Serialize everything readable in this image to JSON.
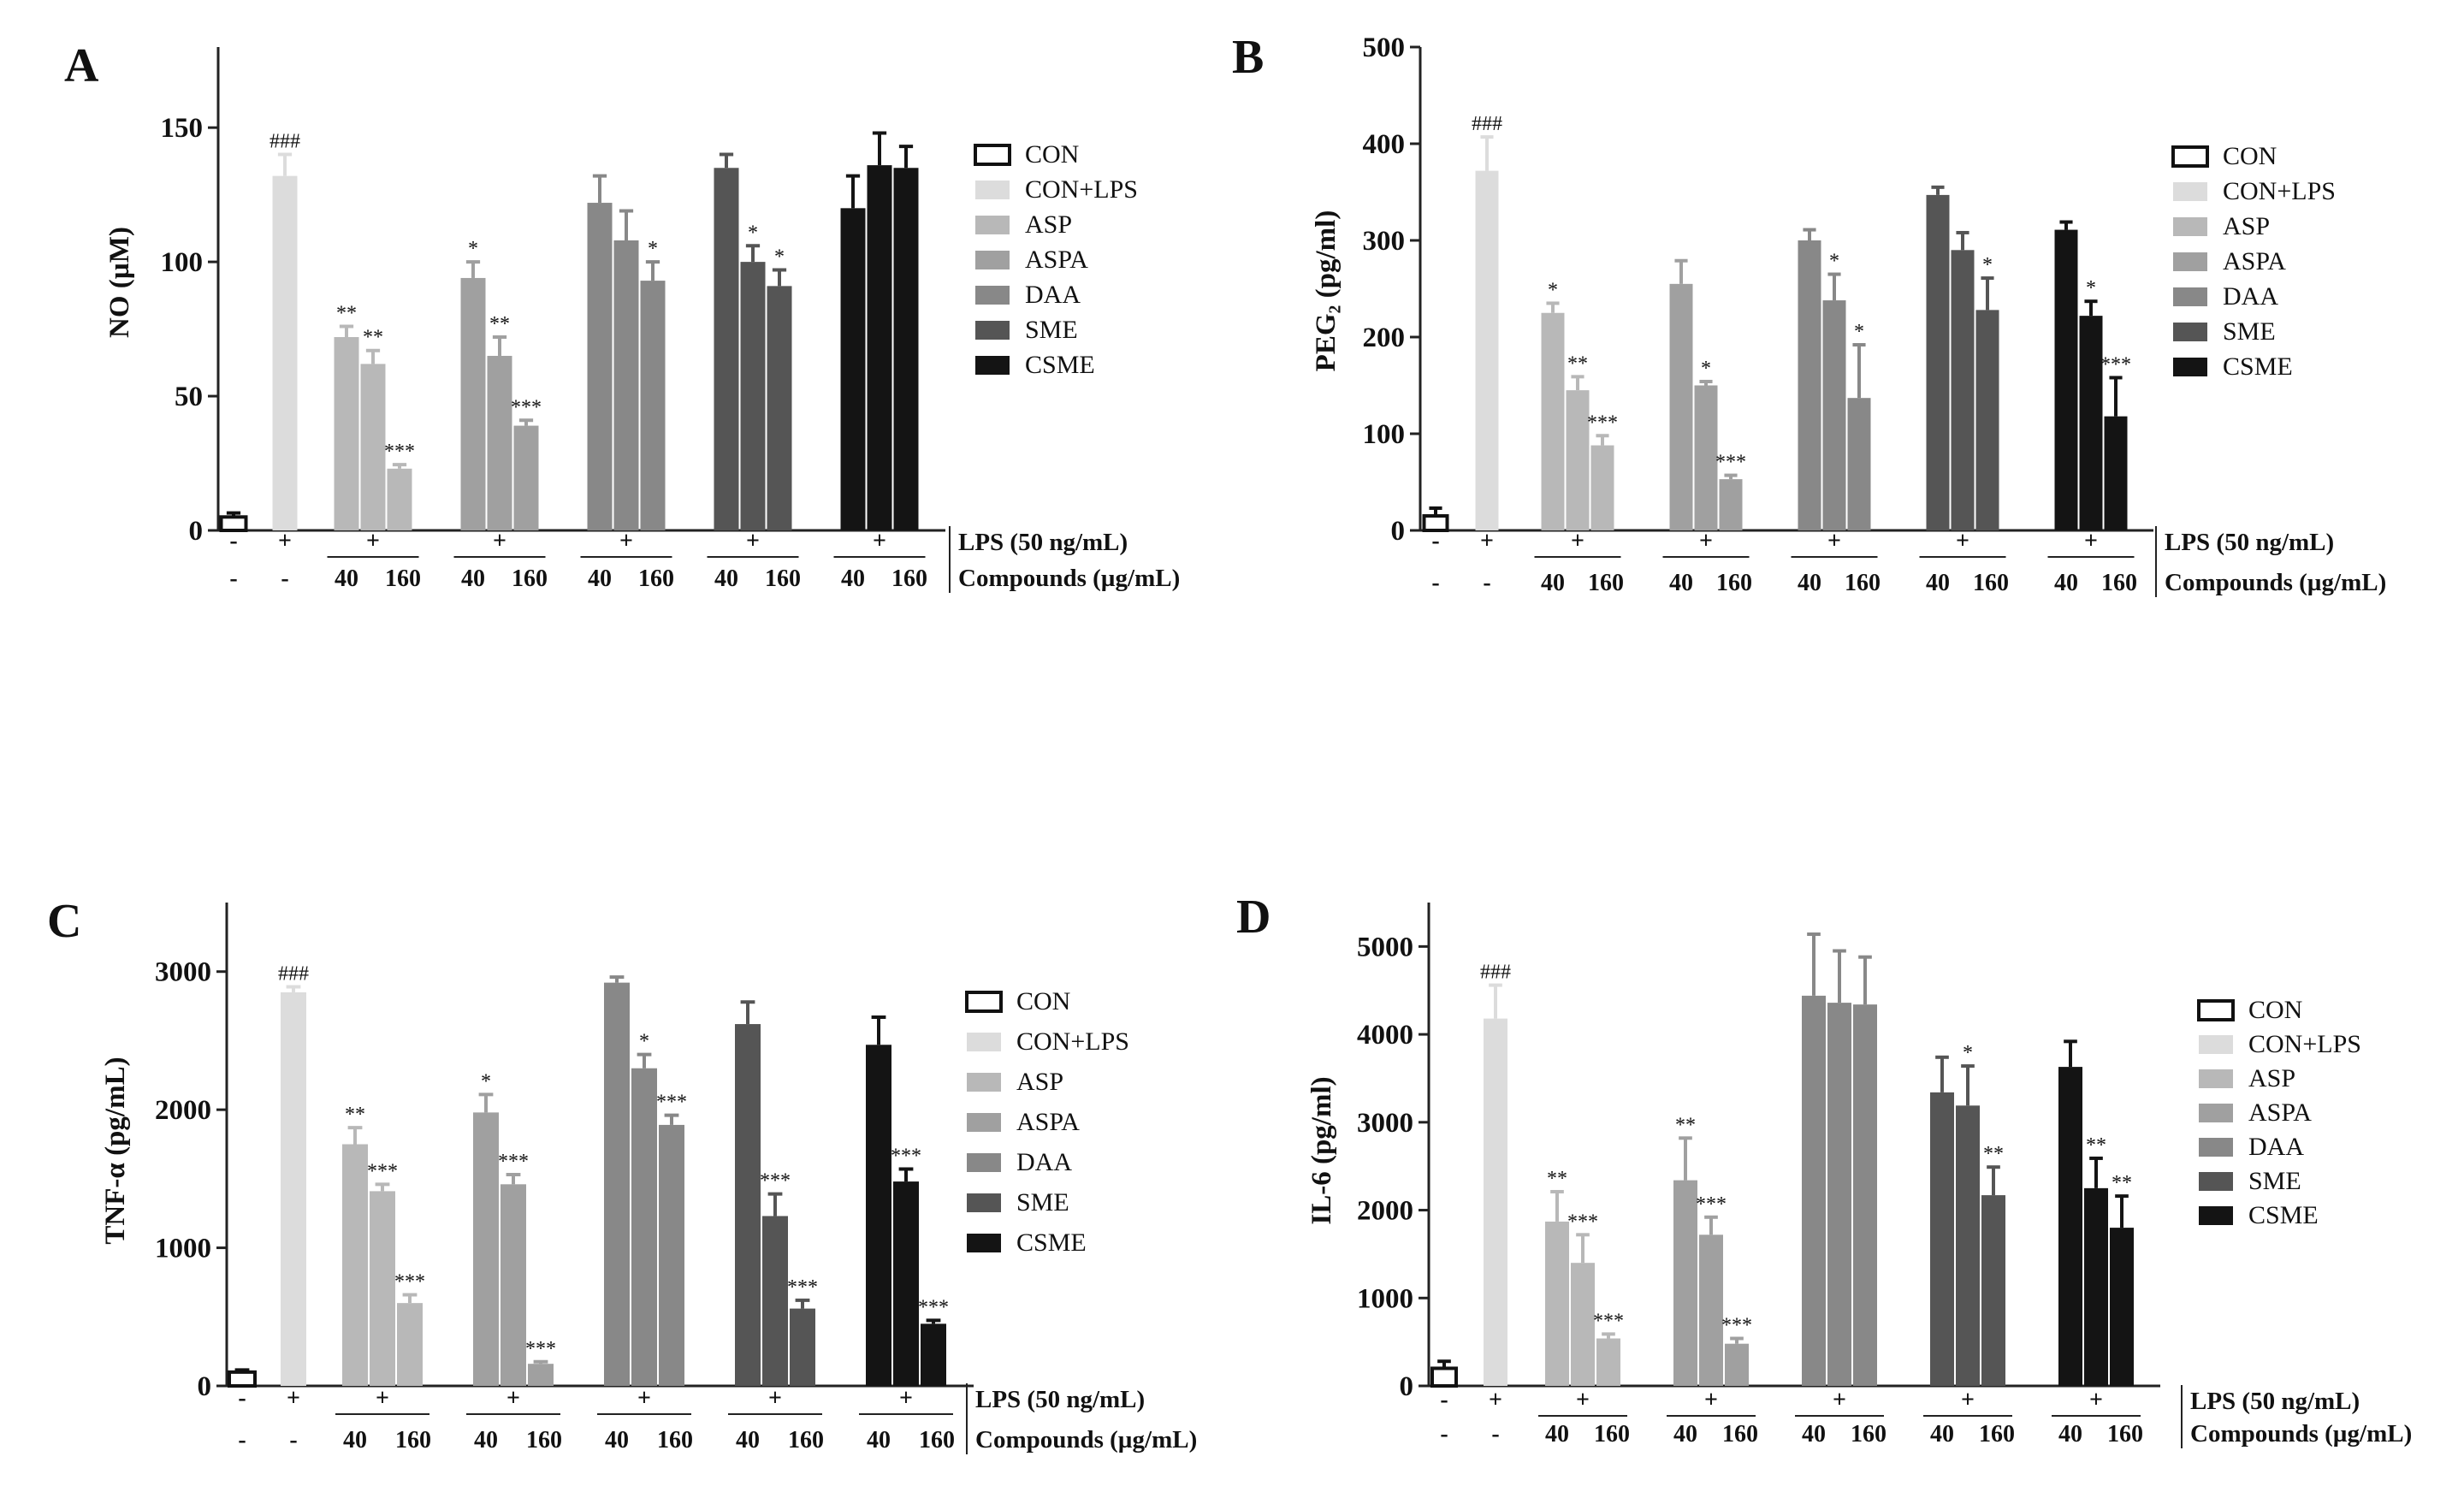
{
  "colors": {
    "CON": "#ffffff",
    "CON+LPS": "#dcdcdc",
    "ASP": "#b8b8b8",
    "ASPA": "#a0a0a0",
    "DAA": "#888888",
    "SME": "#555555",
    "CSME": "#141414"
  },
  "labels": {
    "lps": "LPS (50 ng/mL)",
    "compounds": "Compounds (µg/mL)",
    "dose_low": "40",
    "dose_high": "160",
    "plus": "+",
    "minus": "-"
  },
  "legend": [
    "CON",
    "CON+LPS",
    "ASP",
    "ASPA",
    "DAA",
    "SME",
    "CSME"
  ],
  "chart_data": [
    {
      "type": "bar",
      "panel": "A",
      "ylabel": "NO (µM)",
      "ylim": [
        0,
        180
      ],
      "yticks": [
        0,
        50,
        100,
        150
      ],
      "control": {
        "value": 5,
        "err": 1.5
      },
      "lps": {
        "value": 132,
        "err": 8,
        "sig": "###"
      },
      "series": [
        {
          "name": "ASP",
          "values": [
            72,
            62,
            23
          ],
          "errors": [
            4,
            5,
            1.5
          ],
          "sig": [
            "**",
            "**",
            "***"
          ]
        },
        {
          "name": "ASPA",
          "values": [
            94,
            65,
            39
          ],
          "errors": [
            6,
            7,
            2
          ],
          "sig": [
            "*",
            "**",
            "***"
          ]
        },
        {
          "name": "DAA",
          "values": [
            122,
            108,
            93
          ],
          "errors": [
            10,
            11,
            7
          ],
          "sig": [
            "",
            "",
            "*"
          ]
        },
        {
          "name": "SME",
          "values": [
            135,
            100,
            91
          ],
          "errors": [
            5,
            6,
            6
          ],
          "sig": [
            "",
            "*",
            "*"
          ]
        },
        {
          "name": "CSME",
          "values": [
            120,
            136,
            135
          ],
          "errors": [
            12,
            12,
            8
          ],
          "sig": [
            "",
            "",
            ""
          ]
        }
      ]
    },
    {
      "type": "bar",
      "panel": "B",
      "ylabel": "PEG₂ (pg/ml)",
      "ylim": [
        0,
        500
      ],
      "yticks": [
        0,
        100,
        200,
        300,
        400,
        500
      ],
      "control": {
        "value": 15,
        "err": 8
      },
      "lps": {
        "value": 372,
        "err": 35,
        "sig": "###"
      },
      "series": [
        {
          "name": "ASP",
          "values": [
            225,
            145,
            88
          ],
          "errors": [
            10,
            14,
            10
          ],
          "sig": [
            "*",
            "**",
            "***"
          ]
        },
        {
          "name": "ASPA",
          "values": [
            255,
            150,
            53
          ],
          "errors": [
            24,
            4,
            4
          ],
          "sig": [
            "",
            "*",
            "***"
          ]
        },
        {
          "name": "DAA",
          "values": [
            300,
            238,
            137
          ],
          "errors": [
            11,
            27,
            55
          ],
          "sig": [
            "",
            "*",
            "*"
          ]
        },
        {
          "name": "SME",
          "values": [
            347,
            290,
            228
          ],
          "errors": [
            8,
            18,
            33
          ],
          "sig": [
            "",
            "",
            "*"
          ]
        },
        {
          "name": "CSME",
          "values": [
            311,
            222,
            118
          ],
          "errors": [
            8,
            15,
            40
          ],
          "sig": [
            "",
            "*",
            "***"
          ]
        }
      ]
    },
    {
      "type": "bar",
      "panel": "C",
      "ylabel": "TNF-α (pg/mL)",
      "ylim": [
        0,
        3500
      ],
      "yticks": [
        0,
        1000,
        2000,
        3000
      ],
      "control": {
        "value": 100,
        "err": 15
      },
      "lps": {
        "value": 2850,
        "err": 40,
        "sig": "###"
      },
      "series": [
        {
          "name": "ASP",
          "values": [
            1750,
            1410,
            600
          ],
          "errors": [
            120,
            50,
            60
          ],
          "sig": [
            "**",
            "***",
            "***"
          ]
        },
        {
          "name": "ASPA",
          "values": [
            1980,
            1460,
            160
          ],
          "errors": [
            130,
            70,
            15
          ],
          "sig": [
            "*",
            "***",
            "***"
          ]
        },
        {
          "name": "DAA",
          "values": [
            2920,
            2300,
            1890
          ],
          "errors": [
            40,
            100,
            70
          ],
          "sig": [
            "",
            "*",
            "***"
          ]
        },
        {
          "name": "SME",
          "values": [
            2620,
            1230,
            560
          ],
          "errors": [
            160,
            160,
            60
          ],
          "sig": [
            "",
            "***",
            "***"
          ]
        },
        {
          "name": "CSME",
          "values": [
            2470,
            1480,
            450
          ],
          "errors": [
            200,
            90,
            25
          ],
          "sig": [
            "",
            "***",
            "***"
          ]
        }
      ]
    },
    {
      "type": "bar",
      "panel": "D",
      "ylabel": "IL-6 (pg/ml)",
      "ylim": [
        0,
        5500
      ],
      "yticks": [
        0,
        1000,
        2000,
        3000,
        4000,
        5000
      ],
      "control": {
        "value": 200,
        "err": 80
      },
      "lps": {
        "value": 4180,
        "err": 380,
        "sig": "###"
      },
      "series": [
        {
          "name": "ASP",
          "values": [
            1870,
            1400,
            540
          ],
          "errors": [
            340,
            320,
            50
          ],
          "sig": [
            "**",
            "***",
            "***"
          ]
        },
        {
          "name": "ASPA",
          "values": [
            2340,
            1720,
            480
          ],
          "errors": [
            480,
            200,
            60
          ],
          "sig": [
            "**",
            "***",
            "***"
          ]
        },
        {
          "name": "DAA",
          "values": [
            4440,
            4360,
            4340
          ],
          "errors": [
            700,
            590,
            540
          ],
          "sig": [
            "",
            "",
            ""
          ]
        },
        {
          "name": "SME",
          "values": [
            3340,
            3190,
            2170
          ],
          "errors": [
            400,
            450,
            320
          ],
          "sig": [
            "",
            "*",
            "**"
          ]
        },
        {
          "name": "CSME",
          "values": [
            3630,
            2250,
            1800
          ],
          "errors": [
            290,
            340,
            360
          ],
          "sig": [
            "",
            "**",
            "**"
          ]
        }
      ]
    }
  ]
}
